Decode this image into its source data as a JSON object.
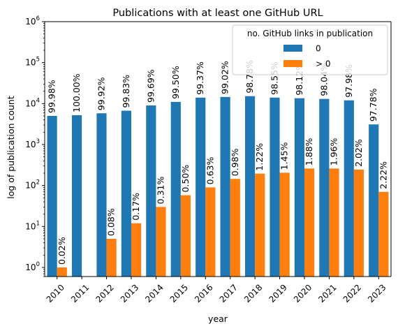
{
  "chart_data": {
    "type": "bar",
    "title": "Publications with at least one GitHub URL",
    "xlabel": "year",
    "ylabel": "log of publication count",
    "yscale": "log",
    "ylim": [
      0.6,
      1000000
    ],
    "yticks": [
      {
        "value": 1,
        "base": "10",
        "exp": "0"
      },
      {
        "value": 10,
        "base": "10",
        "exp": "1"
      },
      {
        "value": 100,
        "base": "10",
        "exp": "2"
      },
      {
        "value": 1000,
        "base": "10",
        "exp": "3"
      },
      {
        "value": 10000,
        "base": "10",
        "exp": "4"
      },
      {
        "value": 100000,
        "base": "10",
        "exp": "5"
      },
      {
        "value": 1000000,
        "base": "10",
        "exp": "6"
      }
    ],
    "categories": [
      "2010",
      "2011",
      "2012",
      "2013",
      "2014",
      "2015",
      "2016",
      "2017",
      "2018",
      "2019",
      "2020",
      "2021",
      "2022",
      "2023"
    ],
    "series": [
      {
        "name": "0",
        "color": "#1f77b4",
        "values": [
          5000,
          5200,
          5800,
          6700,
          9000,
          11000,
          14000,
          14500,
          15200,
          14000,
          13500,
          13000,
          12000,
          3100
        ],
        "labels": [
          "99.98%",
          "100.00%",
          "99.92%",
          "99.83%",
          "99.69%",
          "99.50%",
          "99.37%",
          "99.02%",
          "98.78%",
          "98.55%",
          "98.12%",
          "98.04%",
          "97.98%",
          "97.78%"
        ]
      },
      {
        "name": "> 0",
        "color": "#ff7f0e",
        "values": [
          1,
          null,
          5,
          12,
          30,
          58,
          90,
          145,
          195,
          205,
          260,
          260,
          245,
          70
        ],
        "labels": [
          "0.02%",
          "",
          "0.08%",
          "0.17%",
          "0.31%",
          "0.50%",
          "0.63%",
          "0.98%",
          "1.22%",
          "1.45%",
          "1.88%",
          "1.96%",
          "2.02%",
          "2.22%"
        ]
      }
    ],
    "legend": {
      "title": "no. GitHub links in publication",
      "placement": "upper right"
    },
    "grid": false
  }
}
